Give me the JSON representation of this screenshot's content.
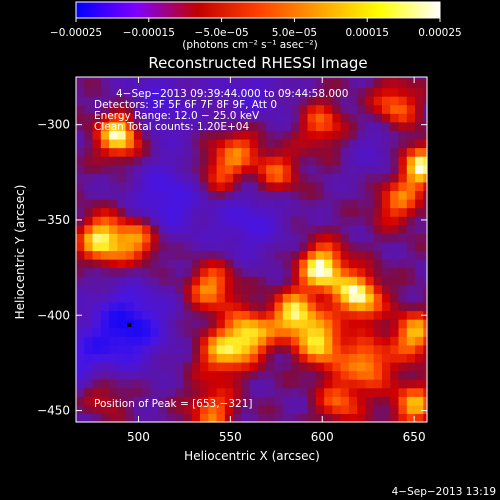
{
  "chart_data": {
    "type": "heatmap",
    "title": "Reconstructed RHESSI Image",
    "xlabel": "Heliocentric X (arcsec)",
    "ylabel": "Heliocentric Y (arcsec)",
    "xlim": [
      466,
      657
    ],
    "ylim": [
      -456,
      -275
    ],
    "xticks": [
      500,
      550,
      600,
      650
    ],
    "xtick_labels": [
      "500",
      "550",
      "600",
      "650"
    ],
    "yticks": [
      -300,
      -350,
      -400,
      -450
    ],
    "ytick_labels": [
      "−300",
      "−350",
      "−400",
      "−450"
    ],
    "colorbar": {
      "range": [
        -0.00025,
        0.00025
      ],
      "ticks": [
        -0.00025,
        -0.00015,
        -5e-05,
        5e-05,
        0.00015,
        0.00025
      ],
      "tick_labels": [
        "−0.00025",
        "−0.00015",
        "−5.0e−05",
        "5.0e−05",
        "0.00015",
        "0.00025"
      ],
      "unit_label": "(photons cm⁻² s⁻¹ asec⁻²)",
      "colors": [
        "#0000ff",
        "#8000ff",
        "#c00000",
        "#ff4000",
        "#ffa000",
        "#ffff00",
        "#ffffff"
      ]
    },
    "annotations": [
      "4−Sep−2013 09:39:44.000 to 09:44:58.000",
      "Detectors: 3F 5F 6F 7F 8F 9F, Att 0",
      "Energy Range: 12.0 − 25.0 keV",
      "Clean    Total counts: 1.20E+04"
    ],
    "peak_label": "Position of Peak = [653,−321]",
    "min_marker": [
      495,
      -405
    ],
    "timestamp": "4−Sep−2013 13:19",
    "intensity_blobs": [
      {
        "x": 490,
        "y": -305,
        "v": 1.0
      },
      {
        "x": 480,
        "y": -360,
        "v": 0.9
      },
      {
        "x": 500,
        "y": -360,
        "v": 0.7
      },
      {
        "x": 540,
        "y": -385,
        "v": 0.7
      },
      {
        "x": 545,
        "y": -325,
        "v": 0.55
      },
      {
        "x": 555,
        "y": -310,
        "v": 0.5
      },
      {
        "x": 575,
        "y": -325,
        "v": 0.55
      },
      {
        "x": 600,
        "y": -300,
        "v": 0.55
      },
      {
        "x": 640,
        "y": -290,
        "v": 0.65
      },
      {
        "x": 653,
        "y": -321,
        "v": 1.0
      },
      {
        "x": 640,
        "y": -340,
        "v": 0.6
      },
      {
        "x": 600,
        "y": -375,
        "v": 1.0
      },
      {
        "x": 620,
        "y": -390,
        "v": 0.95
      },
      {
        "x": 585,
        "y": -400,
        "v": 0.9
      },
      {
        "x": 600,
        "y": -415,
        "v": 0.8
      },
      {
        "x": 560,
        "y": -410,
        "v": 0.85
      },
      {
        "x": 545,
        "y": -420,
        "v": 0.7
      },
      {
        "x": 625,
        "y": -425,
        "v": 0.7
      },
      {
        "x": 650,
        "y": -410,
        "v": 0.75
      },
      {
        "x": 650,
        "y": -447,
        "v": 0.7
      },
      {
        "x": 540,
        "y": -450,
        "v": 0.6
      },
      {
        "x": 480,
        "y": -440,
        "v": 0.5
      },
      {
        "x": 610,
        "y": -445,
        "v": 0.55
      },
      {
        "x": 495,
        "y": -405,
        "v": -0.8
      },
      {
        "x": 515,
        "y": -340,
        "v": -0.55
      },
      {
        "x": 560,
        "y": -350,
        "v": -0.45
      },
      {
        "x": 510,
        "y": -290,
        "v": -0.4
      },
      {
        "x": 560,
        "y": -285,
        "v": -0.35
      },
      {
        "x": 635,
        "y": -315,
        "v": -0.3
      },
      {
        "x": 470,
        "y": -425,
        "v": -0.5
      }
    ]
  }
}
